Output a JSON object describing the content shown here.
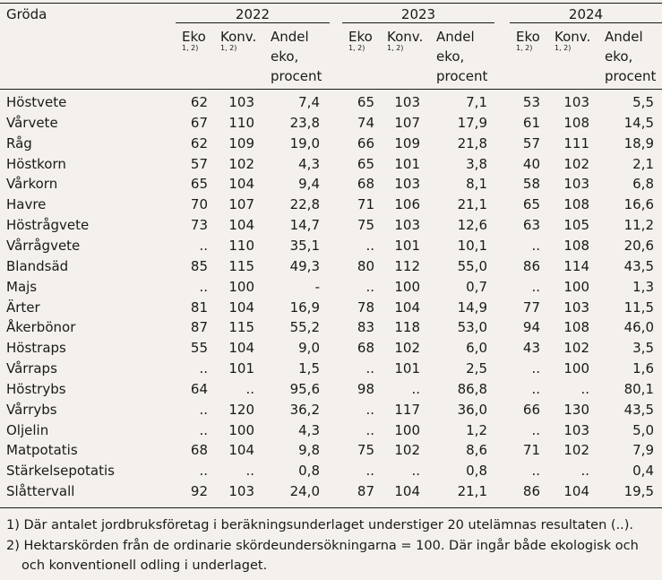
{
  "header": {
    "crop": "Gröda",
    "years": [
      "2022",
      "2023",
      "2024"
    ],
    "col_eko": "Eko",
    "col_konv": "Konv.",
    "col_andel_1": "Andel",
    "col_andel_2": "eko,",
    "col_andel_3": "procent",
    "note_ref": "1, 2)"
  },
  "footnotes": [
    "1) Där antalet jordbruksföretag i beräkningsunderlaget understiger 20 utelämnas resultaten (..).",
    "2) Hektarskörden från de ordinarie skördeundersökningarna = 100. Där ingår både ekologisk och",
    "och konventionell odling i underlaget."
  ],
  "chart_data": {
    "type": "table",
    "columns": [
      "Gröda",
      "2022 Eko",
      "2022 Konv.",
      "2022 Andel eko, procent",
      "2023 Eko",
      "2023 Konv.",
      "2023 Andel eko, procent",
      "2024 Eko",
      "2024 Konv.",
      "2024 Andel eko, procent"
    ],
    "rows": [
      [
        "Höstvete",
        "62",
        "103",
        "7,4",
        "65",
        "103",
        "7,1",
        "53",
        "103",
        "5,5"
      ],
      [
        "Vårvete",
        "67",
        "110",
        "23,8",
        "74",
        "107",
        "17,9",
        "61",
        "108",
        "14,5"
      ],
      [
        "Råg",
        "62",
        "109",
        "19,0",
        "66",
        "109",
        "21,8",
        "57",
        "111",
        "18,9"
      ],
      [
        "Höstkorn",
        "57",
        "102",
        "4,3",
        "65",
        "101",
        "3,8",
        "40",
        "102",
        "2,1"
      ],
      [
        "Vårkorn",
        "65",
        "104",
        "9,4",
        "68",
        "103",
        "8,1",
        "58",
        "103",
        "6,8"
      ],
      [
        "Havre",
        "70",
        "107",
        "22,8",
        "71",
        "106",
        "21,1",
        "65",
        "108",
        "16,6"
      ],
      [
        "Höstrågvete",
        "73",
        "104",
        "14,7",
        "75",
        "103",
        "12,6",
        "63",
        "105",
        "11,2"
      ],
      [
        "Vårrågvete",
        "..",
        "110",
        "35,1",
        "..",
        "101",
        "10,1",
        "..",
        "108",
        "20,6"
      ],
      [
        "Blandsäd",
        "85",
        "115",
        "49,3",
        "80",
        "112",
        "55,0",
        "86",
        "114",
        "43,5"
      ],
      [
        "Majs",
        "..",
        "100",
        "-",
        "..",
        "100",
        "0,7",
        "..",
        "100",
        "1,3"
      ],
      [
        "Ärter",
        "81",
        "104",
        "16,9",
        "78",
        "104",
        "14,9",
        "77",
        "103",
        "11,5"
      ],
      [
        "Åkerbönor",
        "87",
        "115",
        "55,2",
        "83",
        "118",
        "53,0",
        "94",
        "108",
        "46,0"
      ],
      [
        "Höstraps",
        "55",
        "104",
        "9,0",
        "68",
        "102",
        "6,0",
        "43",
        "102",
        "3,5"
      ],
      [
        "Vårraps",
        "..",
        "101",
        "1,5",
        "..",
        "101",
        "2,5",
        "..",
        "100",
        "1,6"
      ],
      [
        "Höstrybs",
        "64",
        "..",
        "95,6",
        "98",
        "..",
        "86,8",
        "..",
        "..",
        "80,1"
      ],
      [
        "Vårrybs",
        "..",
        "120",
        "36,2",
        "..",
        "117",
        "36,0",
        "66",
        "130",
        "43,5"
      ],
      [
        "Oljelin",
        "..",
        "100",
        "4,3",
        "..",
        "100",
        "1,2",
        "..",
        "103",
        "5,0"
      ],
      [
        "Matpotatis",
        "68",
        "104",
        "9,8",
        "75",
        "102",
        "8,6",
        "71",
        "102",
        "7,9"
      ],
      [
        "Stärkelsepotatis",
        "..",
        "..",
        "0,8",
        "..",
        "..",
        "0,8",
        "..",
        "..",
        "0,4"
      ],
      [
        "Slåttervall",
        "92",
        "103",
        "24,0",
        "87",
        "104",
        "21,1",
        "86",
        "104",
        "19,5"
      ]
    ]
  }
}
